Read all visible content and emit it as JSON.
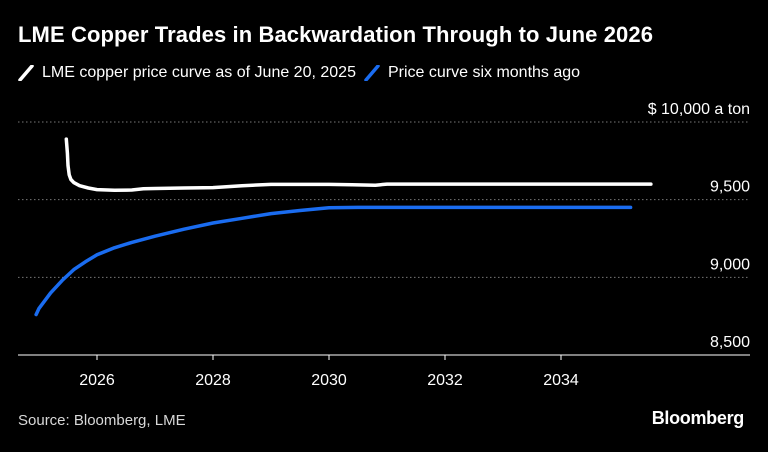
{
  "title": "LME Copper Trades in Backwardation Through to June 2026",
  "source": "Source: Bloomberg, LME",
  "brand": "Bloomberg",
  "colors": {
    "background": "#000000",
    "current_curve": "#ffffff",
    "prior_curve": "#1a6cf0",
    "grid": "#777777",
    "axis": "#ffffff"
  },
  "chart_data": {
    "type": "line",
    "title": "LME Copper Trades in Backwardation Through to June 2026",
    "xlabel": "",
    "ylabel": "$ 10,000 a ton",
    "y_unit_label": "$ 10,000 a ton",
    "ylim": [
      8500,
      10000
    ],
    "xlim": [
      2024.9,
      2036.0
    ],
    "y_ticks": [
      9500,
      9000,
      8500
    ],
    "y_tick_labels": [
      "9,500",
      "9,000",
      "8,500"
    ],
    "y_top_label": "$ 10,000 a ton",
    "x_ticks": [
      2026,
      2028,
      2030,
      2032,
      2034
    ],
    "x_tick_labels": [
      "2026",
      "2028",
      "2030",
      "2032",
      "2034"
    ],
    "grid": "horizontal dotted",
    "legend_placement": "top-left",
    "series": [
      {
        "name": "LME copper price curve as of June 20, 2025",
        "color": "#ffffff",
        "points": [
          [
            2025.47,
            9890
          ],
          [
            2025.49,
            9800
          ],
          [
            2025.5,
            9720
          ],
          [
            2025.52,
            9660
          ],
          [
            2025.55,
            9630
          ],
          [
            2025.6,
            9610
          ],
          [
            2025.7,
            9590
          ],
          [
            2025.85,
            9575
          ],
          [
            2026.0,
            9565
          ],
          [
            2026.3,
            9560
          ],
          [
            2026.6,
            9562
          ],
          [
            2026.8,
            9570
          ],
          [
            2027.0,
            9572
          ],
          [
            2027.5,
            9575
          ],
          [
            2028.0,
            9578
          ],
          [
            2028.5,
            9590
          ],
          [
            2029.0,
            9598
          ],
          [
            2029.5,
            9598
          ],
          [
            2030.0,
            9598
          ],
          [
            2030.4,
            9596
          ],
          [
            2030.8,
            9593
          ],
          [
            2031.0,
            9600
          ],
          [
            2032.0,
            9600
          ],
          [
            2033.0,
            9600
          ],
          [
            2034.0,
            9600
          ],
          [
            2035.0,
            9600
          ],
          [
            2035.55,
            9600
          ]
        ]
      },
      {
        "name": "Price curve six months ago",
        "color": "#1a6cf0",
        "points": [
          [
            2024.95,
            8760
          ],
          [
            2025.0,
            8800
          ],
          [
            2025.2,
            8900
          ],
          [
            2025.4,
            8980
          ],
          [
            2025.6,
            9050
          ],
          [
            2025.8,
            9100
          ],
          [
            2026.0,
            9145
          ],
          [
            2026.3,
            9190
          ],
          [
            2026.6,
            9225
          ],
          [
            2027.0,
            9265
          ],
          [
            2027.5,
            9310
          ],
          [
            2028.0,
            9350
          ],
          [
            2028.5,
            9380
          ],
          [
            2029.0,
            9410
          ],
          [
            2029.5,
            9430
          ],
          [
            2030.0,
            9448
          ],
          [
            2030.5,
            9450
          ],
          [
            2031.0,
            9450
          ],
          [
            2032.0,
            9450
          ],
          [
            2033.0,
            9450
          ],
          [
            2034.0,
            9450
          ],
          [
            2035.0,
            9450
          ],
          [
            2035.2,
            9450
          ]
        ]
      }
    ]
  }
}
